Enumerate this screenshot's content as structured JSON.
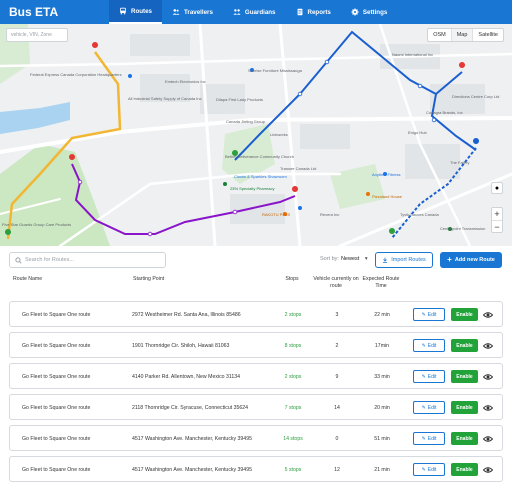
{
  "app": {
    "title": "Bus ETA"
  },
  "nav": [
    {
      "label": "Routes",
      "icon": "bus-icon",
      "active": true
    },
    {
      "label": "Travellers",
      "icon": "users-icon",
      "active": false
    },
    {
      "label": "Guardians",
      "icon": "guardians-icon",
      "active": false
    },
    {
      "label": "Reports",
      "icon": "reports-icon",
      "active": false
    },
    {
      "label": "Settings",
      "icon": "gear-icon",
      "active": false
    }
  ],
  "map": {
    "search_placeholder": "vehicle, VIN, Zone",
    "types": [
      "OSM",
      "Map",
      "Satellite"
    ],
    "zoom_in": "+",
    "zoom_out": "−",
    "labels": [
      "Federal Express Canada Corporation Headquarters",
      "All Industrial Safety Supply of Canada Inc",
      "Sunrise Furniture Mississauga",
      "Dilapa First Lady Products",
      "Canada Jinting Group",
      "Emtech Electronics Inc",
      "Linkworks",
      "Bethel Deliverance Community Church",
      "Transee Canada Ltd",
      "Clocks & Sparkles Showroom",
      "ZEN Specialty Pharmacy",
      "RAKOTU PLUS",
      "Revera Inc",
      "Naomi International Inc",
      "Directions Centre Corp Ltd",
      "Conagra Brands, Inc",
      "The Fatery",
      "Anytime Fitness",
      "Pizzaland House",
      "Tyvik Sauces Canada",
      "Centrepoint Transmission",
      "Five Star Guards Group Care Products",
      "Enigo Hub"
    ]
  },
  "toolbar": {
    "search_placeholder": "Search for Routes...",
    "sort_label": "Sort by:",
    "sort_value": "Newest",
    "import_label": "Import Routes",
    "add_label": "Add new Route"
  },
  "table": {
    "headers": {
      "route_name": "Route Name",
      "starting_point": "Starting Point",
      "stops": "Stops",
      "vehicle": "Vehicle currently on route",
      "time": "Expected Route Time"
    },
    "edit_label": "Edit",
    "enable_label": "Enable",
    "rows": [
      {
        "name": "Go Fleet to Square One route",
        "start": "2972 Westheimer Rd. Santa Ana, Illinois 85486",
        "stops": "2 stops",
        "vehicles": "3",
        "time": "22 min"
      },
      {
        "name": "Go Fleet to Square One route",
        "start": "1901 Thornridge Cir. Shiloh, Hawaii 81063",
        "stops": "8 stops",
        "vehicles": "2",
        "time": "17min"
      },
      {
        "name": "Go Fleet to Square One route",
        "start": "4140 Parker Rd. Allentown, New Mexico 31134",
        "stops": "2 stops",
        "vehicles": "9",
        "time": "33 min"
      },
      {
        "name": "Go Fleet to Square One route",
        "start": "2118 Thornridge Cir. Syracuse, Connecticut 35624",
        "stops": "7 stops",
        "vehicles": "14",
        "time": "20 min"
      },
      {
        "name": "Go Fleet to Square One route",
        "start": "4517 Washington Ave. Manchester, Kentucky 39495",
        "stops": "14 stops",
        "vehicles": "0",
        "time": "51 min"
      },
      {
        "name": "Go Fleet to Square One route",
        "start": "4517 Washington Ave. Manchester, Kentucky 39495",
        "stops": "5 stops",
        "vehicles": "12",
        "time": "21 min"
      }
    ]
  },
  "colors": {
    "primary": "#1976d2",
    "success": "#22a33a",
    "route_yellow": "#f2b632",
    "route_purple": "#8a14c9",
    "route_blue": "#1a5fd0"
  }
}
